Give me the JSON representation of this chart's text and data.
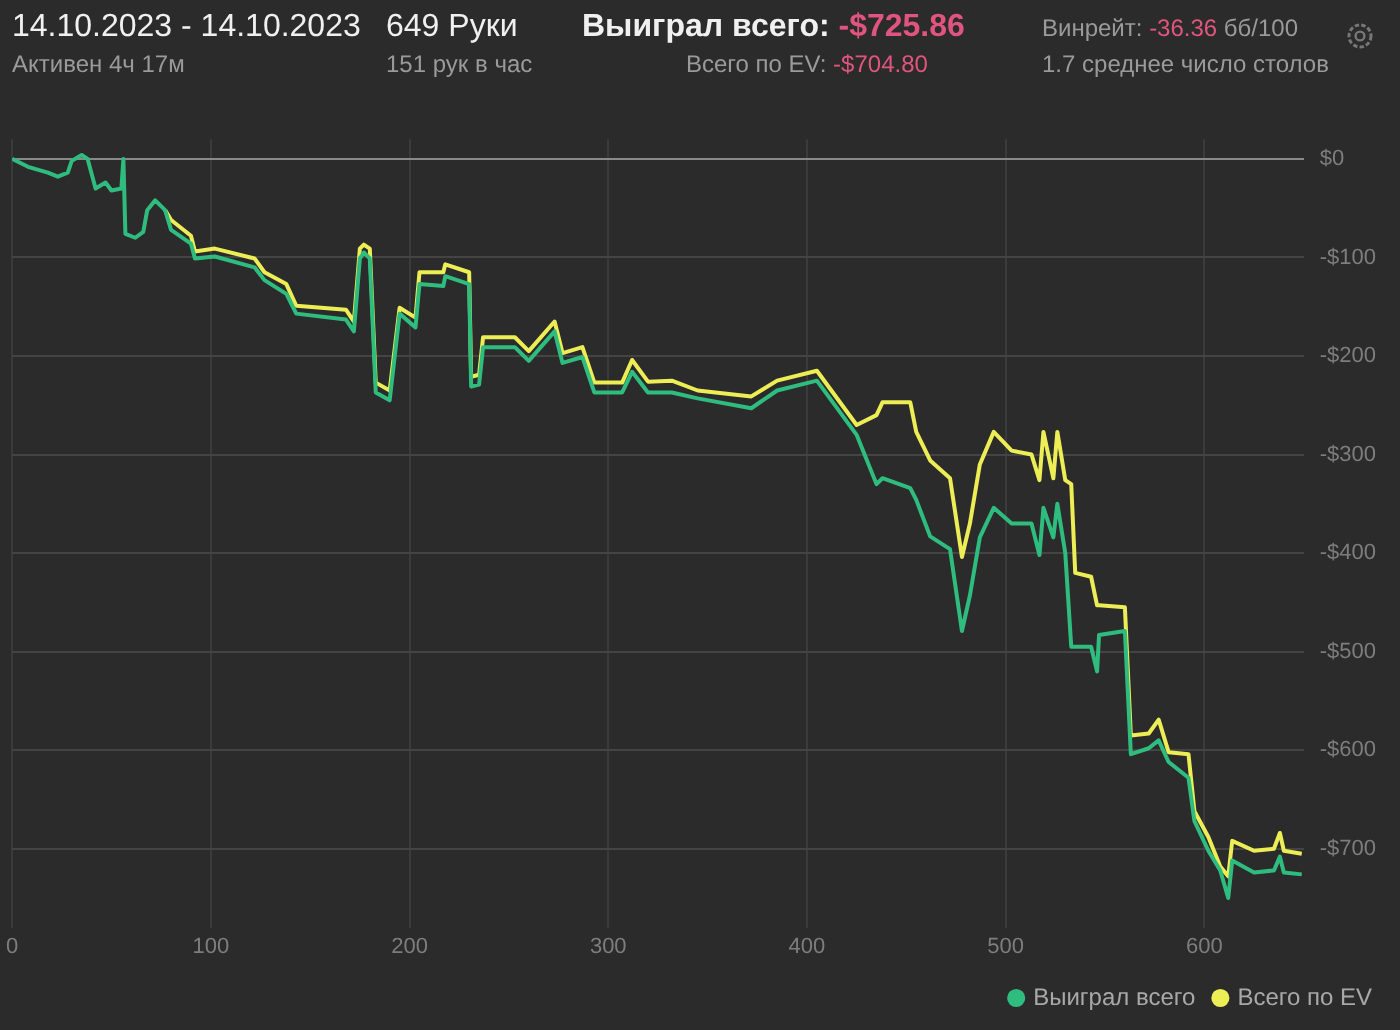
{
  "chart_data": {
    "type": "line",
    "title": "14.10.2023 - 14.10.2023",
    "annotations": [
      "Активен 4ч 17м",
      "649 Руки",
      "151 рук в час",
      "Выиграл всего: -$725.86",
      "Всего по EV: -$704.80",
      "Винрейт: -36.36 бб/100",
      "1.7 среднее число столов"
    ],
    "x": [
      0,
      8,
      18,
      23,
      28,
      30,
      35,
      38,
      42,
      47,
      50,
      55,
      56,
      57,
      62,
      66,
      68,
      72,
      77,
      80,
      90,
      92,
      102,
      122,
      127,
      138,
      143,
      168,
      172,
      175,
      177,
      180,
      183,
      190,
      195,
      203,
      205,
      217,
      218,
      230,
      231,
      235,
      237,
      253,
      260,
      273,
      277,
      287,
      293,
      307,
      312,
      320,
      332,
      345,
      372,
      385,
      405,
      425,
      435,
      438,
      452,
      455,
      462,
      472,
      478,
      482,
      487,
      494,
      503,
      513,
      517,
      519,
      524,
      526,
      530,
      533,
      535,
      543,
      546,
      547,
      560,
      563,
      572,
      577,
      582,
      592,
      595,
      602,
      608,
      612,
      614,
      625,
      635,
      638,
      640,
      649
    ],
    "series": [
      {
        "name": "Выиграл всего",
        "color": "#2ebd7f",
        "values": [
          0,
          -8,
          -14,
          -18,
          -14,
          -2,
          4,
          0,
          -30,
          -24,
          -32,
          -30,
          0,
          -76,
          -80,
          -74,
          -52,
          -42,
          -52,
          -72,
          -86,
          -101,
          -99,
          -110,
          -123,
          -137,
          -157,
          -163,
          -175,
          -101,
          -95,
          -101,
          -237,
          -245,
          -157,
          -171,
          -127,
          -129,
          -119,
          -127,
          -231,
          -229,
          -191,
          -191,
          -205,
          -175,
          -207,
          -201,
          -237,
          -237,
          -216,
          -237,
          -237,
          -243,
          -253,
          -235,
          -225,
          -280,
          -330,
          -324,
          -334,
          -346,
          -383,
          -396,
          -479,
          -443,
          -384,
          -354,
          -370,
          -370,
          -402,
          -354,
          -384,
          -350,
          -400,
          -495,
          -495,
          -495,
          -520,
          -483,
          -479,
          -604,
          -598,
          -590,
          -612,
          -628,
          -672,
          -702,
          -722,
          -750,
          -712,
          -724,
          -722,
          -708,
          -724,
          -726
        ]
      },
      {
        "name": "Всего по EV",
        "color": "#eded55",
        "values": [
          null,
          null,
          null,
          null,
          null,
          null,
          null,
          null,
          null,
          null,
          null,
          null,
          null,
          null,
          null,
          null,
          null,
          null,
          -52,
          -62,
          -78,
          -94,
          -91,
          -101,
          -115,
          -127,
          -149,
          -153,
          -165,
          -91,
          -87,
          -91,
          -227,
          -235,
          -151,
          -161,
          -115,
          -115,
          -107,
          -115,
          -221,
          -219,
          -181,
          -181,
          -195,
          -165,
          -197,
          -191,
          -227,
          -227,
          -204,
          -226,
          -225,
          -235,
          -241,
          -225,
          -215,
          -270,
          -260,
          -247,
          -247,
          -277,
          -306,
          -324,
          -404,
          -370,
          -310,
          -277,
          -296,
          -300,
          -326,
          -277,
          -324,
          -277,
          -326,
          -330,
          -420,
          -424,
          -453,
          -453,
          -455,
          -585,
          -583,
          -569,
          -602,
          -604,
          -662,
          -688,
          -718,
          -728,
          -692,
          -702,
          -700,
          -684,
          -702,
          -705
        ]
      }
    ],
    "xlim": [
      0,
      650
    ],
    "xticks": [
      0,
      100,
      200,
      300,
      400,
      500,
      600
    ],
    "ylim": [
      -780,
      20
    ],
    "yticks": [
      {
        "value": 0,
        "label": "$0"
      },
      {
        "value": -100,
        "label": "-$100"
      },
      {
        "value": -200,
        "label": "-$200"
      },
      {
        "value": -300,
        "label": "-$300"
      },
      {
        "value": -400,
        "label": "-$400"
      },
      {
        "value": -500,
        "label": "-$500"
      },
      {
        "value": -600,
        "label": "-$600"
      },
      {
        "value": -700,
        "label": "-$700"
      }
    ],
    "grid": true,
    "legend": "bottom right",
    "marker": "none",
    "line_style": "solid"
  }
}
